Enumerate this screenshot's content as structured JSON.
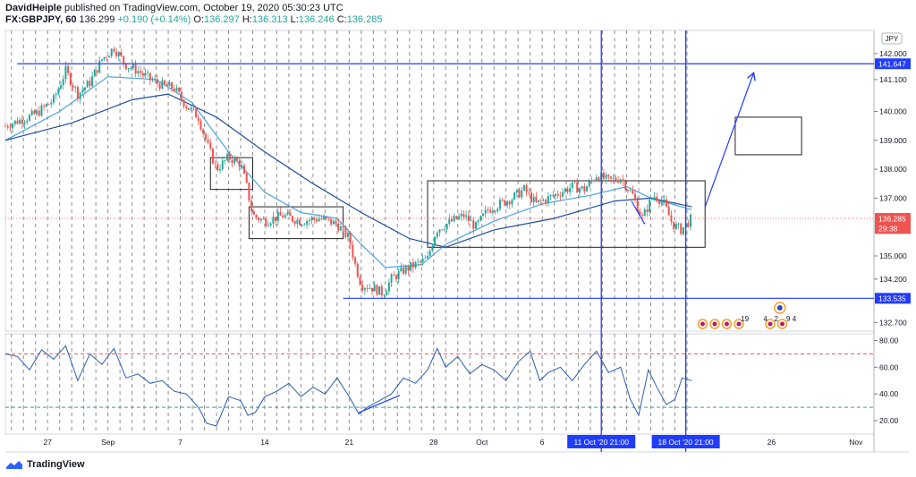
{
  "header": {
    "author": "DavidHeiple",
    "published_text": "published on TradingView.com, October 19, 2020 05:30:23 UTC",
    "symbol": "FX:GBPJPY, 60",
    "last": "136.299",
    "change": "+0.190 (+0.14%)",
    "o_label": "O:",
    "o_value": "136.297",
    "h_label": "H:",
    "h_value": "136.313",
    "l_label": "L:",
    "l_value": "136.246",
    "c_label": "C:",
    "c_value": "136.285"
  },
  "brand": {
    "name": "TradingView"
  },
  "colors": {
    "candle_up": "#26a69a",
    "candle_down": "#ef5350",
    "ma_fast": "#4aa3df",
    "ma_slow": "#1e4d9b",
    "drawing": "#1f3cff",
    "rsi": "#2a5db0",
    "rsi_upper": "#ef5350",
    "rsi_lower": "#26a69a",
    "price_label_red": "#ef5350",
    "price_label_blue": "#1f3cff"
  },
  "chart_data": {
    "type": "candlestick",
    "currency": "JPY",
    "y_axis": {
      "range": [
        132.4,
        142.8
      ],
      "ticks": [
        "142.000",
        "141.100",
        "140.000",
        "139.000",
        "138.000",
        "137.000",
        "135.000",
        "134.200",
        "132.700"
      ],
      "tick_values": [
        142.0,
        141.1,
        140.0,
        139.0,
        138.0,
        137.0,
        135.0,
        134.2,
        132.7
      ]
    },
    "x_axis": {
      "labels": [
        "27",
        "Sep",
        "7",
        "14",
        "21",
        "28",
        "Oct",
        "6",
        "26",
        "Nov"
      ],
      "label_days": [
        0,
        5,
        11,
        18,
        25,
        32,
        36,
        41,
        60,
        67
      ],
      "range_days": [
        -3.5,
        68.5
      ],
      "highlight_labels": [
        "11 Oct '20   21:00",
        "18 Oct '20   21:00"
      ],
      "highlight_days": [
        45.9,
        52.9
      ]
    },
    "price_labels": [
      {
        "text": "141.647",
        "value": 141.647,
        "style": "blue"
      },
      {
        "text": "136.299",
        "value": 136.299,
        "style": "red"
      },
      {
        "text": "136.285",
        "value": 136.285,
        "style": "red"
      },
      {
        "text": "29:38",
        "value": 135.95,
        "style": "red"
      },
      {
        "text": "133.535",
        "value": 133.535,
        "style": "blue"
      }
    ],
    "price_path": [
      {
        "day": -3.5,
        "price": 139.5
      },
      {
        "day": -1,
        "price": 139.9
      },
      {
        "day": 0.5,
        "price": 140.4
      },
      {
        "day": 1.5,
        "price": 141.4
      },
      {
        "day": 2.5,
        "price": 140.6
      },
      {
        "day": 3.5,
        "price": 141.0
      },
      {
        "day": 4.5,
        "price": 141.8
      },
      {
        "day": 5.5,
        "price": 142.2
      },
      {
        "day": 6.5,
        "price": 141.6
      },
      {
        "day": 7.5,
        "price": 141.4
      },
      {
        "day": 8.5,
        "price": 141.1
      },
      {
        "day": 9.5,
        "price": 140.9
      },
      {
        "day": 10.5,
        "price": 140.8
      },
      {
        "day": 11.5,
        "price": 140.2
      },
      {
        "day": 12.5,
        "price": 139.8
      },
      {
        "day": 13.2,
        "price": 138.9
      },
      {
        "day": 14,
        "price": 138.0
      },
      {
        "day": 15,
        "price": 138.4
      },
      {
        "day": 16,
        "price": 138.2
      },
      {
        "day": 16.5,
        "price": 137.4
      },
      {
        "day": 17,
        "price": 136.4
      },
      {
        "day": 18,
        "price": 136.2
      },
      {
        "day": 19.5,
        "price": 136.4
      },
      {
        "day": 21,
        "price": 136.2
      },
      {
        "day": 22.5,
        "price": 136.3
      },
      {
        "day": 24,
        "price": 136.1
      },
      {
        "day": 25,
        "price": 135.6
      },
      {
        "day": 25.5,
        "price": 134.7
      },
      {
        "day": 26,
        "price": 134.0
      },
      {
        "day": 27,
        "price": 133.9
      },
      {
        "day": 27.8,
        "price": 133.7
      },
      {
        "day": 28.5,
        "price": 134.2
      },
      {
        "day": 29.5,
        "price": 134.5
      },
      {
        "day": 30.5,
        "price": 134.7
      },
      {
        "day": 31.5,
        "price": 134.9
      },
      {
        "day": 32.2,
        "price": 135.9
      },
      {
        "day": 33.5,
        "price": 136.2
      },
      {
        "day": 34.5,
        "price": 136.4
      },
      {
        "day": 35.5,
        "price": 136.0
      },
      {
        "day": 36.5,
        "price": 136.6
      },
      {
        "day": 37.5,
        "price": 136.8
      },
      {
        "day": 38.5,
        "price": 137.0
      },
      {
        "day": 39.5,
        "price": 137.3
      },
      {
        "day": 40.5,
        "price": 136.8
      },
      {
        "day": 41.5,
        "price": 137.0
      },
      {
        "day": 42.5,
        "price": 137.2
      },
      {
        "day": 43.5,
        "price": 137.4
      },
      {
        "day": 44.5,
        "price": 137.3
      },
      {
        "day": 45.5,
        "price": 137.8
      },
      {
        "day": 46.5,
        "price": 137.6
      },
      {
        "day": 47.5,
        "price": 137.7
      },
      {
        "day": 48.5,
        "price": 137.1
      },
      {
        "day": 49.3,
        "price": 136.3
      },
      {
        "day": 50.2,
        "price": 137.1
      },
      {
        "day": 51,
        "price": 136.9
      },
      {
        "day": 51.8,
        "price": 136.1
      },
      {
        "day": 52.5,
        "price": 135.9
      },
      {
        "day": 53.4,
        "price": 136.3
      }
    ],
    "moving_averages": [
      {
        "style": "fast",
        "path": [
          {
            "day": -3.5,
            "price": 139.0
          },
          {
            "day": 1,
            "price": 140.0
          },
          {
            "day": 5,
            "price": 141.2
          },
          {
            "day": 9,
            "price": 141.1
          },
          {
            "day": 12,
            "price": 140.3
          },
          {
            "day": 15,
            "price": 138.6
          },
          {
            "day": 18,
            "price": 137.2
          },
          {
            "day": 21,
            "price": 136.5
          },
          {
            "day": 24,
            "price": 136.3
          },
          {
            "day": 26,
            "price": 135.4
          },
          {
            "day": 28,
            "price": 134.6
          },
          {
            "day": 31,
            "price": 134.7
          },
          {
            "day": 33,
            "price": 135.4
          },
          {
            "day": 37,
            "price": 136.2
          },
          {
            "day": 41,
            "price": 136.8
          },
          {
            "day": 45,
            "price": 137.1
          },
          {
            "day": 48,
            "price": 137.4
          },
          {
            "day": 50,
            "price": 137.0
          },
          {
            "day": 53.4,
            "price": 136.6
          }
        ]
      },
      {
        "style": "slow",
        "path": [
          {
            "day": -3.5,
            "price": 139.0
          },
          {
            "day": 2,
            "price": 139.6
          },
          {
            "day": 7,
            "price": 140.4
          },
          {
            "day": 10,
            "price": 140.6
          },
          {
            "day": 14,
            "price": 139.8
          },
          {
            "day": 18,
            "price": 138.6
          },
          {
            "day": 22,
            "price": 137.5
          },
          {
            "day": 26,
            "price": 136.5
          },
          {
            "day": 30,
            "price": 135.6
          },
          {
            "day": 33,
            "price": 135.3
          },
          {
            "day": 37,
            "price": 135.9
          },
          {
            "day": 42,
            "price": 136.3
          },
          {
            "day": 47,
            "price": 136.9
          },
          {
            "day": 50,
            "price": 137.0
          },
          {
            "day": 53.4,
            "price": 136.7
          }
        ]
      }
    ],
    "drawings": {
      "horizontal_lines": [
        {
          "value": 141.647,
          "from_day": -2.5,
          "to_day": 68.5
        },
        {
          "value": 133.535,
          "from_day": 24.5,
          "to_day": 68.5
        }
      ],
      "vertical_lines_days": [
        45.9,
        52.9
      ],
      "rectangles": [
        {
          "from_day": 13.5,
          "to_day": 17,
          "top": 138.4,
          "bottom": 137.3,
          "color": "dark"
        },
        {
          "from_day": 16.7,
          "to_day": 24.5,
          "top": 136.7,
          "bottom": 135.6,
          "color": "dark"
        },
        {
          "from_day": 31.5,
          "to_day": 54.5,
          "top": 137.6,
          "bottom": 135.3,
          "color": "dark"
        },
        {
          "from_day": 57,
          "to_day": 62.5,
          "top": 139.8,
          "bottom": 138.5,
          "color": "dark"
        }
      ],
      "trend_lines": [
        {
          "from_day": 54.5,
          "from_price": 136.7,
          "to_day": 58.5,
          "to_price": 141.3
        },
        {
          "from_day": 48.4,
          "from_price": 136.9,
          "to_day": 49.5,
          "to_price": 136.1
        }
      ]
    },
    "rsi": {
      "range": [
        10,
        85
      ],
      "ticks": [
        "80.00",
        "60.00",
        "40.00",
        "20.00"
      ],
      "tick_values": [
        80,
        60,
        40,
        20
      ],
      "upper_band": 70,
      "lower_band": 30,
      "path": [
        {
          "day": -3.5,
          "price": 70
        },
        {
          "day": -2.5,
          "price": 68
        },
        {
          "day": -1.5,
          "price": 58
        },
        {
          "day": -0.5,
          "price": 73
        },
        {
          "day": 0.5,
          "price": 66
        },
        {
          "day": 1.5,
          "price": 76
        },
        {
          "day": 2.5,
          "price": 50
        },
        {
          "day": 3.5,
          "price": 70
        },
        {
          "day": 4.5,
          "price": 62
        },
        {
          "day": 5.5,
          "price": 74
        },
        {
          "day": 6.5,
          "price": 52
        },
        {
          "day": 7.5,
          "price": 55
        },
        {
          "day": 8.5,
          "price": 48
        },
        {
          "day": 9.5,
          "price": 50
        },
        {
          "day": 10.5,
          "price": 42
        },
        {
          "day": 11.5,
          "price": 40
        },
        {
          "day": 12.5,
          "price": 30
        },
        {
          "day": 13.2,
          "price": 18
        },
        {
          "day": 14,
          "price": 16
        },
        {
          "day": 15,
          "price": 38
        },
        {
          "day": 16,
          "price": 35
        },
        {
          "day": 16.6,
          "price": 24
        },
        {
          "day": 17.2,
          "price": 26
        },
        {
          "day": 18,
          "price": 38
        },
        {
          "day": 19,
          "price": 42
        },
        {
          "day": 20,
          "price": 48
        },
        {
          "day": 21,
          "price": 38
        },
        {
          "day": 22,
          "price": 45
        },
        {
          "day": 23,
          "price": 40
        },
        {
          "day": 24,
          "price": 52
        },
        {
          "day": 25,
          "price": 38
        },
        {
          "day": 25.8,
          "price": 25
        },
        {
          "day": 26.5,
          "price": 30
        },
        {
          "day": 27.5,
          "price": 35
        },
        {
          "day": 28.5,
          "price": 40
        },
        {
          "day": 29.5,
          "price": 52
        },
        {
          "day": 30.5,
          "price": 48
        },
        {
          "day": 31.5,
          "price": 58
        },
        {
          "day": 32.3,
          "price": 74
        },
        {
          "day": 33,
          "price": 60
        },
        {
          "day": 34,
          "price": 68
        },
        {
          "day": 35,
          "price": 55
        },
        {
          "day": 36,
          "price": 62
        },
        {
          "day": 37,
          "price": 58
        },
        {
          "day": 38,
          "price": 50
        },
        {
          "day": 39,
          "price": 64
        },
        {
          "day": 40,
          "price": 72
        },
        {
          "day": 40.8,
          "price": 50
        },
        {
          "day": 41.5,
          "price": 56
        },
        {
          "day": 42.5,
          "price": 60
        },
        {
          "day": 43.5,
          "price": 50
        },
        {
          "day": 44.5,
          "price": 62
        },
        {
          "day": 45.5,
          "price": 72
        },
        {
          "day": 46.5,
          "price": 56
        },
        {
          "day": 47.5,
          "price": 60
        },
        {
          "day": 48.3,
          "price": 36
        },
        {
          "day": 49,
          "price": 24
        },
        {
          "day": 49.8,
          "price": 58
        },
        {
          "day": 50.5,
          "price": 45
        },
        {
          "day": 51.3,
          "price": 32
        },
        {
          "day": 52,
          "price": 36
        },
        {
          "day": 52.6,
          "price": 52
        },
        {
          "day": 53.4,
          "price": 50
        }
      ],
      "trend_line": {
        "from_day": 25.8,
        "from_value": 26,
        "to_day": 29.2,
        "to_value": 39
      }
    },
    "event_markers": {
      "labels": [
        "19",
        "4",
        "2",
        "9",
        "4"
      ],
      "label_days": [
        57.8,
        59.5,
        60.4,
        61.4,
        61.9
      ],
      "flag_days": [
        54.3,
        55.3,
        56.3,
        57.3,
        59.9,
        60.9
      ],
      "top_flag_day": 60.7
    },
    "grid": "vertical dashed day separators",
    "legend": "none"
  }
}
